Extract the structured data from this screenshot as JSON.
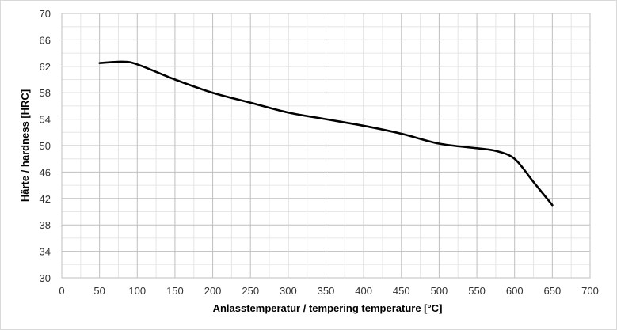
{
  "chart_data": {
    "type": "line",
    "title": "",
    "xlabel": "Anlasstemperatur / tempering temperature [°C]",
    "ylabel": "Härte / hardness [HRC]",
    "xlim": [
      0,
      700
    ],
    "ylim": [
      30,
      70
    ],
    "xticks": [
      "0",
      "50",
      "100",
      "150",
      "200",
      "250",
      "300",
      "350",
      "400",
      "450",
      "500",
      "550",
      "600",
      "650",
      "700"
    ],
    "yticks": [
      "30",
      "34",
      "38",
      "42",
      "46",
      "50",
      "54",
      "58",
      "62",
      "66",
      "70"
    ],
    "grid": true,
    "line_color": "#000000",
    "series": [
      {
        "x": [
          50,
          80,
          100,
          150,
          200,
          250,
          300,
          350,
          400,
          450,
          500,
          550,
          575,
          600,
          625,
          650
        ],
        "values": [
          62.5,
          62.7,
          62.3,
          60.0,
          58.0,
          56.5,
          55.0,
          54.0,
          53.0,
          51.8,
          50.3,
          49.6,
          49.2,
          48.0,
          44.5,
          41.0
        ]
      }
    ]
  }
}
